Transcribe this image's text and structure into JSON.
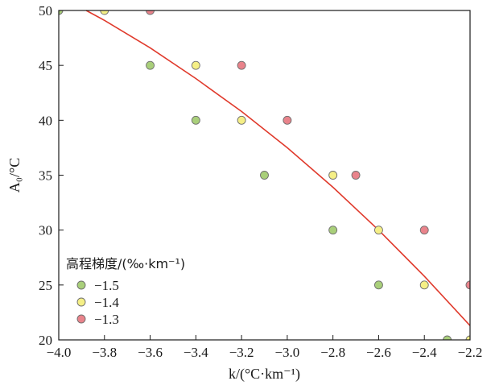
{
  "chart_data": {
    "type": "scatter",
    "xlabel": "k/(°C·km⁻¹)",
    "ylabel": "A₀/°C",
    "xlim": [
      -4.0,
      -2.2
    ],
    "ylim": [
      20,
      50
    ],
    "x_ticks": [
      "−4.0",
      "−3.8",
      "−3.6",
      "−3.4",
      "−3.2",
      "−3.0",
      "−2.8",
      "−2.6",
      "−2.4",
      "−2.2"
    ],
    "y_ticks": [
      "20",
      "25",
      "30",
      "35",
      "40",
      "45",
      "50"
    ],
    "grid": false,
    "legend": {
      "title": "高程梯度/(‰·km⁻¹)",
      "placement": "bottom-left",
      "entries": [
        "−1.5",
        "−1.4",
        "−1.3"
      ]
    },
    "series": [
      {
        "name": "−1.5",
        "color": "#a9cf7a",
        "points": [
          {
            "x": -4.0,
            "y": 50
          },
          {
            "x": -3.6,
            "y": 45
          },
          {
            "x": -3.4,
            "y": 40
          },
          {
            "x": -3.1,
            "y": 35
          },
          {
            "x": -2.8,
            "y": 30
          },
          {
            "x": -2.6,
            "y": 25
          },
          {
            "x": -2.3,
            "y": 20
          }
        ]
      },
      {
        "name": "−1.4",
        "color": "#f5ef86",
        "points": [
          {
            "x": -3.8,
            "y": 50
          },
          {
            "x": -3.4,
            "y": 45
          },
          {
            "x": -3.2,
            "y": 40
          },
          {
            "x": -2.8,
            "y": 35
          },
          {
            "x": -2.6,
            "y": 30
          },
          {
            "x": -2.4,
            "y": 25
          },
          {
            "x": -2.2,
            "y": 20
          }
        ]
      },
      {
        "name": "−1.3",
        "color": "#e9838b",
        "points": [
          {
            "x": -3.6,
            "y": 50
          },
          {
            "x": -3.2,
            "y": 45
          },
          {
            "x": -3.0,
            "y": 40
          },
          {
            "x": -2.7,
            "y": 35
          },
          {
            "x": -2.4,
            "y": 30
          },
          {
            "x": -2.2,
            "y": 25
          }
        ]
      }
    ],
    "fit_curve": {
      "color": "#e03a2c",
      "points": [
        {
          "x": -3.88,
          "y": 50.0
        },
        {
          "x": -3.8,
          "y": 49.1
        },
        {
          "x": -3.6,
          "y": 46.6
        },
        {
          "x": -3.4,
          "y": 43.8
        },
        {
          "x": -3.2,
          "y": 40.8
        },
        {
          "x": -3.0,
          "y": 37.5
        },
        {
          "x": -2.8,
          "y": 33.9
        },
        {
          "x": -2.6,
          "y": 30.0
        },
        {
          "x": -2.4,
          "y": 25.8
        },
        {
          "x": -2.2,
          "y": 21.3
        }
      ]
    }
  }
}
